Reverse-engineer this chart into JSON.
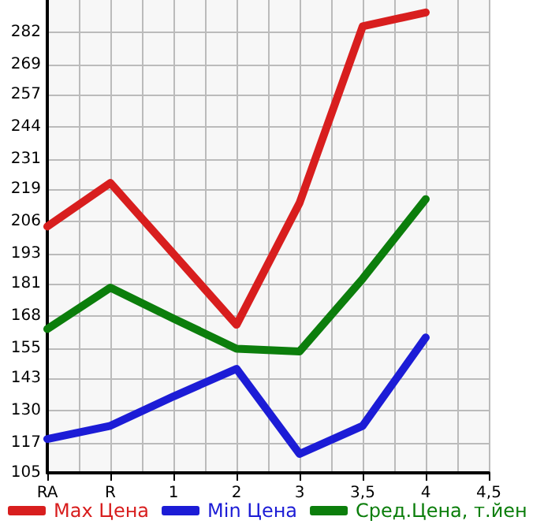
{
  "chart_data": {
    "type": "line",
    "categories": [
      "RA",
      "R",
      "1",
      "2",
      "3",
      "3,5",
      "4",
      "4,5"
    ],
    "series": [
      {
        "name": "Max Цена",
        "color": "#d81e1e",
        "values": [
          204,
          221.5,
          193,
          164.5,
          213.5,
          284.4,
          290,
          null
        ]
      },
      {
        "name": "Min Цена",
        "color": "#1c1cd6",
        "values": [
          118.6,
          123.9,
          135.7,
          146.8,
          112.6,
          123.9,
          159.4,
          null
        ]
      },
      {
        "name": "Сред.Цена, т.йен",
        "color": "#0c7e0c",
        "values": [
          162.8,
          179.4,
          167,
          154.9,
          153.8,
          183,
          215,
          null
        ]
      }
    ],
    "ylim": [
      105,
      295
    ],
    "yticks": [
      105,
      117,
      130,
      143,
      155,
      168,
      181,
      193,
      206,
      219,
      231,
      244,
      257,
      269,
      282
    ],
    "grid": true,
    "legend": "bottom left",
    "marker": "none",
    "line_style": "solid"
  }
}
